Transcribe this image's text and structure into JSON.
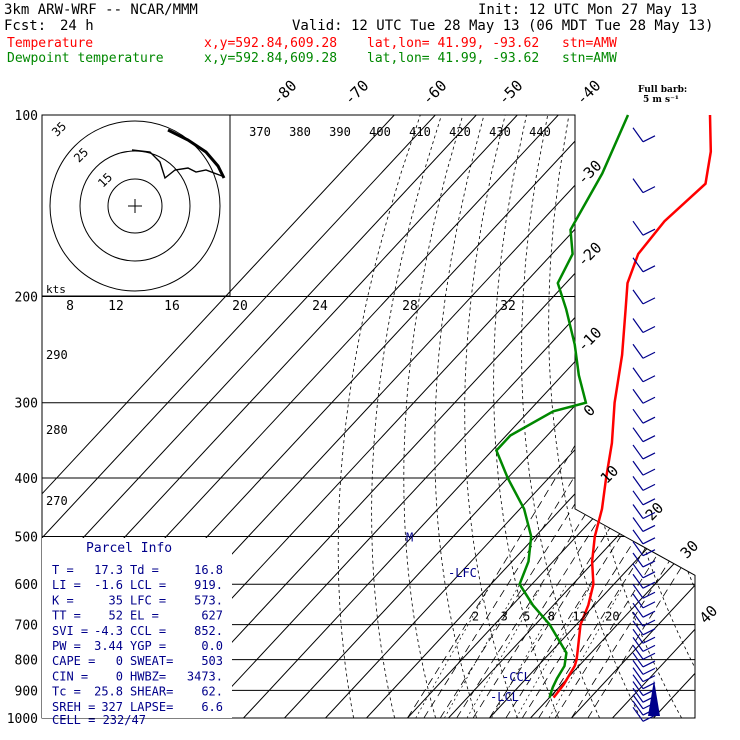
{
  "header": {
    "title": "3km ARW-WRF -- NCAR/MMM",
    "init": "Init: 12 UTC Mon 27 May 13",
    "fcst_label": "Fcst:",
    "fcst_value": "24 h",
    "valid": "Valid: 12 UTC Tue 28 May 13 (06 MDT Tue 28 May 13)",
    "temperature_line": {
      "label": "Temperature",
      "xy": "x,y=592.84,609.28",
      "latlon": "lat,lon= 41.99, -93.62",
      "stn": "stn=AMW",
      "color": "#ff0000"
    },
    "dewpoint_line": {
      "label": "Dewpoint temperature",
      "xy": "x,y=592.84,609.28",
      "latlon": "lat,lon= 41.99, -93.62",
      "stn": "stn=AMW",
      "color": "#008800"
    }
  },
  "barb_legend": {
    "line1": "Full barb:",
    "line2": "5 m s⁻¹"
  },
  "parcel_info": {
    "title": "Parcel Info",
    "rows": [
      {
        "a": "T  =",
        "av": "17.3",
        "b": "Td =",
        "bv": "16.8"
      },
      {
        "a": "LI =",
        "av": "-1.6",
        "b": "LCL =",
        "bv": "919."
      },
      {
        "a": "K  =",
        "av": "35",
        "b": "LFC =",
        "bv": "573."
      },
      {
        "a": "TT =",
        "av": "52",
        "b": "EL =",
        "bv": "627"
      },
      {
        "a": "SVI =",
        "av": "-4.3",
        "b": "CCL =",
        "bv": "852."
      },
      {
        "a": "PW =",
        "av": "3.44",
        "b": "YGP =",
        "bv": "0.0"
      },
      {
        "a": "CAPE =",
        "av": "0",
        "b": "SWEAT=",
        "bv": "503"
      },
      {
        "a": "CIN =",
        "av": "0",
        "b": "HWBZ=",
        "bv": "3473."
      },
      {
        "a": "Tc =",
        "av": "25.8",
        "b": "SHEAR=",
        "bv": "62."
      },
      {
        "a": "SREH =",
        "av": "327",
        "b": "LAPSE=",
        "bv": "6.6"
      }
    ],
    "cell": "CELL = 232/47"
  },
  "chart_data": {
    "type": "line",
    "title": "",
    "xlabel": "Temperature (°C, skewed isotherms)",
    "ylabel": "Pressure (hPa)",
    "pressure_ticks": [
      100,
      200,
      300,
      400,
      500,
      600,
      700,
      800,
      900,
      1000
    ],
    "isotherm_labels": [
      -80,
      -70,
      -60,
      -50,
      -40,
      -30,
      -20,
      -10,
      0,
      10,
      20,
      30,
      40
    ],
    "theta_e_labels": [
      370,
      380,
      390,
      400,
      410,
      420,
      430,
      440
    ],
    "theta_labels": [
      290,
      280,
      270
    ],
    "mixing_ratio_labels": [
      2,
      3,
      5,
      8,
      12,
      20
    ],
    "lifted_index_labels": [
      8,
      12,
      16,
      20,
      24,
      28,
      32
    ],
    "pressure_scale": "log",
    "level_labels": [
      {
        "text": "-LFC",
        "p": 573
      },
      {
        "text": "-CCL",
        "p": 852
      },
      {
        "text": "-LCL",
        "p": 919
      },
      {
        "text": "M",
        "p": 500
      }
    ],
    "series": [
      {
        "name": "Temperature",
        "color": "#ff0000",
        "points": [
          {
            "p": 925,
            "t": 21.0
          },
          {
            "p": 880,
            "t": 20.5
          },
          {
            "p": 820,
            "t": 19.0
          },
          {
            "p": 800,
            "t": 18.0
          },
          {
            "p": 770,
            "t": 16.0
          },
          {
            "p": 700,
            "t": 11.0
          },
          {
            "p": 650,
            "t": 8.5
          },
          {
            "p": 600,
            "t": 5.0
          },
          {
            "p": 550,
            "t": -0.5
          },
          {
            "p": 500,
            "t": -5.5
          },
          {
            "p": 450,
            "t": -10.0
          },
          {
            "p": 400,
            "t": -16.0
          },
          {
            "p": 350,
            "t": -22.5
          },
          {
            "p": 300,
            "t": -31.0
          },
          {
            "p": 250,
            "t": -40.0
          },
          {
            "p": 210,
            "t": -49.5
          },
          {
            "p": 190,
            "t": -55.0
          },
          {
            "p": 170,
            "t": -59.0
          },
          {
            "p": 150,
            "t": -60.0
          },
          {
            "p": 130,
            "t": -58.5
          },
          {
            "p": 115,
            "t": -64.5
          },
          {
            "p": 100,
            "t": -73.0
          }
        ]
      },
      {
        "name": "Dewpoint temperature",
        "color": "#008800",
        "points": [
          {
            "p": 925,
            "t": 20.0
          },
          {
            "p": 890,
            "t": 18.5
          },
          {
            "p": 860,
            "t": 17.5
          },
          {
            "p": 820,
            "t": 16.5
          },
          {
            "p": 780,
            "t": 14.0
          },
          {
            "p": 700,
            "t": 3.5
          },
          {
            "p": 650,
            "t": -5.0
          },
          {
            "p": 600,
            "t": -13.0
          },
          {
            "p": 550,
            "t": -16.0
          },
          {
            "p": 500,
            "t": -21.0
          },
          {
            "p": 450,
            "t": -29.0
          },
          {
            "p": 400,
            "t": -40.0
          },
          {
            "p": 360,
            "t": -49.0
          },
          {
            "p": 340,
            "t": -49.0
          },
          {
            "p": 310,
            "t": -44.0
          },
          {
            "p": 300,
            "t": -38.0
          },
          {
            "p": 270,
            "t": -46.0
          },
          {
            "p": 240,
            "t": -54.0
          },
          {
            "p": 210,
            "t": -64.0
          },
          {
            "p": 190,
            "t": -72.0
          },
          {
            "p": 170,
            "t": -75.0
          },
          {
            "p": 155,
            "t": -81.0
          },
          {
            "p": 125,
            "t": -86.0
          },
          {
            "p": 100,
            "t": -93.0
          }
        ]
      }
    ],
    "hodograph": {
      "ring_labels": [
        35,
        25,
        15
      ],
      "units": "kts"
    }
  }
}
